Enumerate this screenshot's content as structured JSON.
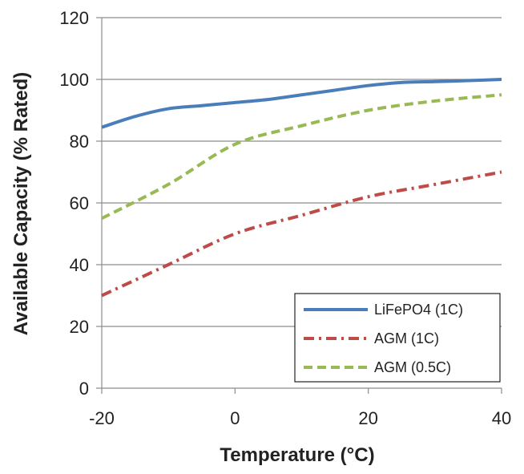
{
  "chart_data": {
    "type": "line",
    "title": "",
    "xlabel": "Temperature (°C)",
    "ylabel": "Available Capacity (% Rated)",
    "xlim": [
      -20,
      40
    ],
    "ylim": [
      0,
      120
    ],
    "x_ticks": [
      -20,
      0,
      20,
      40
    ],
    "y_ticks": [
      0,
      20,
      40,
      60,
      80,
      100,
      120
    ],
    "grid": "horizontal",
    "legend_position": "bottom-right",
    "series": [
      {
        "name": "LiFePO4 (1C)",
        "color": "#4a7ebb",
        "style": "solid",
        "x": [
          -20,
          -15,
          -10,
          -5,
          0,
          5,
          10,
          15,
          20,
          25,
          30,
          35,
          40
        ],
        "y": [
          84.5,
          88,
          90.5,
          91.5,
          92.5,
          93.5,
          95,
          96.5,
          98,
          99,
          99.3,
          99.6,
          100
        ]
      },
      {
        "name": "AGM (1C)",
        "color": "#be4b48",
        "style": "dashdot",
        "x": [
          -20,
          -10,
          0,
          10,
          20,
          30,
          40
        ],
        "y": [
          30,
          40,
          50,
          56,
          62,
          66,
          70
        ]
      },
      {
        "name": "AGM (0.5C)",
        "color": "#98b954",
        "style": "dashed",
        "x": [
          -20,
          -10,
          0,
          10,
          20,
          30,
          40
        ],
        "y": [
          55,
          66,
          79,
          85,
          90,
          93,
          95
        ]
      }
    ]
  }
}
